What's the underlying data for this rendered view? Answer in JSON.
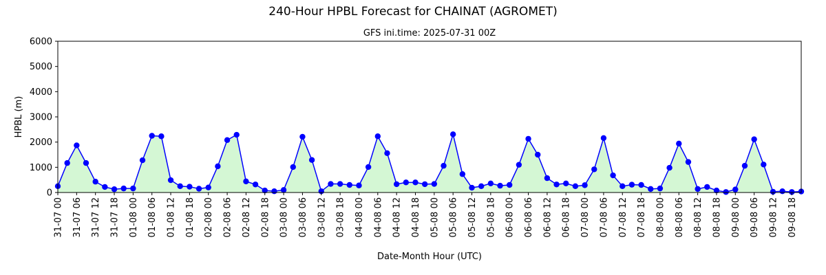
{
  "chart_data": {
    "type": "line",
    "title": "240-Hour HPBL Forecast for CHAINAT (AGROMET)",
    "subtitle": "GFS ini.time: 2025-07-31 00Z",
    "xlabel": "Date-Month Hour (UTC)",
    "ylabel": "HPBL (m)",
    "ylim": [
      0,
      6000
    ],
    "yticks": [
      "0",
      "1000",
      "2000",
      "3000",
      "4000",
      "5000",
      "6000"
    ],
    "x_step_hours": 3,
    "xtick_labels": [
      "31-07 00",
      "31-07 06",
      "31-07 12",
      "31-07 18",
      "01-08 00",
      "01-08 06",
      "01-08 12",
      "01-08 18",
      "02-08 00",
      "02-08 06",
      "02-08 12",
      "02-08 18",
      "03-08 00",
      "03-08 06",
      "03-08 12",
      "03-08 18",
      "04-08 00",
      "04-08 06",
      "04-08 12",
      "04-08 18",
      "05-08 00",
      "05-08 06",
      "05-08 12",
      "05-08 18",
      "06-08 00",
      "06-08 06",
      "06-08 12",
      "06-08 18",
      "07-08 00",
      "07-08 06",
      "07-08 12",
      "07-08 18",
      "08-08 00",
      "08-08 06",
      "08-08 12",
      "08-08 18",
      "09-08 00",
      "09-08 06",
      "09-08 12",
      "09-08 18"
    ],
    "grid": false,
    "colors": {
      "line": "#0000ff",
      "marker": "#0000ff",
      "fill": "#d4f7d4"
    },
    "values": [
      250,
      1170,
      1870,
      1170,
      430,
      220,
      130,
      160,
      160,
      1280,
      2250,
      2230,
      490,
      250,
      230,
      150,
      200,
      1040,
      2080,
      2290,
      440,
      320,
      80,
      50,
      100,
      1010,
      2210,
      1290,
      50,
      340,
      340,
      300,
      280,
      1010,
      2230,
      1560,
      330,
      400,
      400,
      330,
      340,
      1060,
      2310,
      730,
      190,
      250,
      360,
      270,
      300,
      1100,
      2130,
      1500,
      570,
      320,
      360,
      250,
      290,
      920,
      2160,
      680,
      250,
      310,
      300,
      140,
      160,
      980,
      1940,
      1210,
      140,
      220,
      80,
      20,
      120,
      1060,
      2110,
      1110,
      30,
      50,
      20,
      40
    ]
  }
}
